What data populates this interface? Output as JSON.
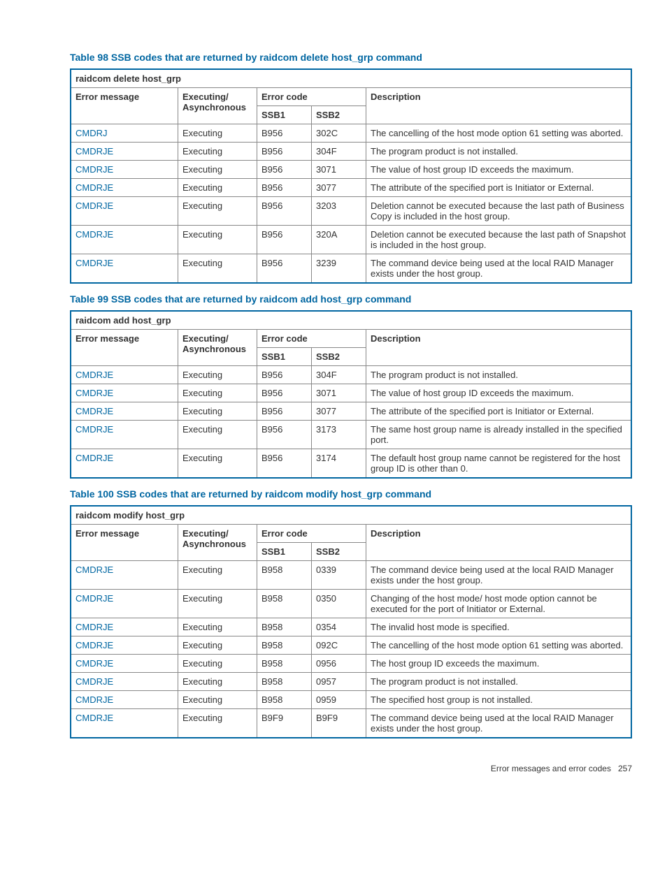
{
  "colors": {
    "accent": "#0066a1",
    "border": "#888",
    "text": "#333",
    "bg": "#ffffff"
  },
  "typography": {
    "body_fontsize": 13,
    "title_fontsize": 14,
    "footer_fontsize": 12
  },
  "columns": {
    "error_message": "Error message",
    "exec_async": "Executing/ Asynchronous",
    "error_code": "Error code",
    "ssb1": "SSB1",
    "ssb2": "SSB2",
    "description": "Description"
  },
  "tables": [
    {
      "title": "Table 98 SSB codes that are returned by raidcom delete host_grp command",
      "caption": "raidcom delete host_grp",
      "rows": [
        {
          "err": "CMDRJ",
          "exec": "Executing",
          "ssb1": "B956",
          "ssb2": "302C",
          "desc": "The cancelling of the host mode option 61 setting was aborted."
        },
        {
          "err": "CMDRJE",
          "exec": "Executing",
          "ssb1": "B956",
          "ssb2": "304F",
          "desc": "The program product is not installed."
        },
        {
          "err": "CMDRJE",
          "exec": "Executing",
          "ssb1": "B956",
          "ssb2": "3071",
          "desc": "The value of host group ID exceeds the maximum."
        },
        {
          "err": "CMDRJE",
          "exec": "Executing",
          "ssb1": "B956",
          "ssb2": "3077",
          "desc": "The attribute of the specified port is Initiator or External."
        },
        {
          "err": "CMDRJE",
          "exec": "Executing",
          "ssb1": "B956",
          "ssb2": "3203",
          "desc": "Deletion cannot be executed because the last path of Business Copy is included in the host group."
        },
        {
          "err": "CMDRJE",
          "exec": "Executing",
          "ssb1": "B956",
          "ssb2": "320A",
          "desc": "Deletion cannot be executed because the last path of Snapshot is included in the host group."
        },
        {
          "err": "CMDRJE",
          "exec": "Executing",
          "ssb1": "B956",
          "ssb2": "3239",
          "desc": "The command device being used at the local RAID Manager exists under the host group."
        }
      ]
    },
    {
      "title": "Table 99 SSB codes that are returned by raidcom add host_grp command",
      "caption": "raidcom add host_grp",
      "rows": [
        {
          "err": "CMDRJE",
          "exec": "Executing",
          "ssb1": "B956",
          "ssb2": "304F",
          "desc": "The program product is not installed."
        },
        {
          "err": "CMDRJE",
          "exec": "Executing",
          "ssb1": "B956",
          "ssb2": "3071",
          "desc": "The value of host group ID exceeds the maximum."
        },
        {
          "err": "CMDRJE",
          "exec": "Executing",
          "ssb1": "B956",
          "ssb2": "3077",
          "desc": "The attribute of the specified port is Initiator or External."
        },
        {
          "err": "CMDRJE",
          "exec": "Executing",
          "ssb1": "B956",
          "ssb2": "3173",
          "desc": "The same host group name is already installed in the specified port."
        },
        {
          "err": "CMDRJE",
          "exec": "Executing",
          "ssb1": "B956",
          "ssb2": "3174",
          "desc": "The default host group name cannot be registered for the host group ID is other than 0."
        }
      ]
    },
    {
      "title": "Table 100 SSB codes that are returned by raidcom modify host_grp command",
      "caption": "raidcom modify host_grp",
      "rows": [
        {
          "err": "CMDRJE",
          "exec": "Executing",
          "ssb1": "B958",
          "ssb2": "0339",
          "desc": "The command device being used at the local RAID Manager exists under the host group."
        },
        {
          "err": "CMDRJE",
          "exec": "Executing",
          "ssb1": "B958",
          "ssb2": "0350",
          "desc": "Changing of the host mode/ host mode option cannot be executed for the port of Initiator or External."
        },
        {
          "err": "CMDRJE",
          "exec": "Executing",
          "ssb1": "B958",
          "ssb2": "0354",
          "desc": "The invalid host mode is specified."
        },
        {
          "err": "CMDRJE",
          "exec": "Executing",
          "ssb1": "B958",
          "ssb2": "092C",
          "desc": "The cancelling of the host mode option 61 setting was aborted."
        },
        {
          "err": "CMDRJE",
          "exec": "Executing",
          "ssb1": "B958",
          "ssb2": "0956",
          "desc": "The host group ID exceeds the maximum."
        },
        {
          "err": "CMDRJE",
          "exec": "Executing",
          "ssb1": "B958",
          "ssb2": "0957",
          "desc": "The program product is not installed."
        },
        {
          "err": "CMDRJE",
          "exec": "Executing",
          "ssb1": "B958",
          "ssb2": "0959",
          "desc": "The specified host group is not installed."
        },
        {
          "err": "CMDRJE",
          "exec": "Executing",
          "ssb1": "B9F9",
          "ssb2": "B9F9",
          "desc": "The command device being used at the local RAID Manager exists under the host group."
        }
      ]
    }
  ],
  "footer": {
    "text": "Error messages and error codes",
    "page": "257"
  }
}
